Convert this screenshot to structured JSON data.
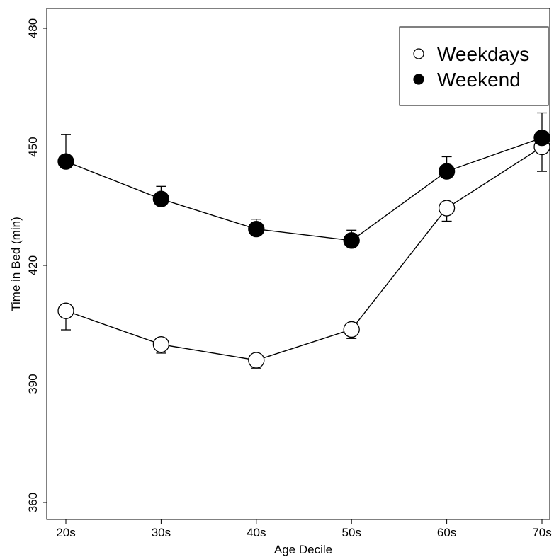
{
  "chart_data": {
    "type": "line",
    "title": "",
    "xlabel": "Age Decile",
    "ylabel": "Time in Bed (min)",
    "categories": [
      "20s",
      "30s",
      "40s",
      "50s",
      "60s",
      "70s"
    ],
    "ylim": [
      358,
      485
    ],
    "yticks": [
      360,
      390,
      420,
      450,
      480
    ],
    "grid": false,
    "legend_position": "top-right",
    "series": [
      {
        "name": "Weekdays",
        "marker": "open-circle",
        "values": [
          408.5,
          400,
          396,
          403.8,
          434.5,
          450
        ],
        "error": [
          4.8,
          2.2,
          2.0,
          2.3,
          3.3,
          6.2
        ],
        "error_direction": "down"
      },
      {
        "name": "Weekend",
        "marker": "filled-circle",
        "values": [
          446.3,
          436.8,
          429.2,
          426.3,
          443.8,
          452.3
        ],
        "error": [
          6.8,
          3.2,
          2.5,
          2.6,
          3.7,
          6.3
        ],
        "error_direction": "up"
      }
    ],
    "colors": {
      "line": "#000000",
      "open_fill": "#ffffff",
      "filled": "#000000"
    }
  }
}
